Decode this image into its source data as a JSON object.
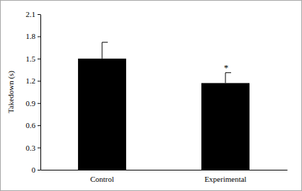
{
  "chart_data": {
    "type": "bar",
    "categories": [
      "Control",
      "Experimental"
    ],
    "values": [
      1.5,
      1.17
    ],
    "errors": [
      0.22,
      0.14
    ],
    "color": "#000000",
    "y_label": "Takedown (s)",
    "ylim": [
      0,
      2.1
    ],
    "yticks": [
      0,
      0.3,
      0.6,
      0.9,
      1.2,
      1.5,
      1.8,
      2.1
    ],
    "grid": false,
    "annotations": [
      {
        "text": "*",
        "category": "Experimental"
      }
    ]
  }
}
